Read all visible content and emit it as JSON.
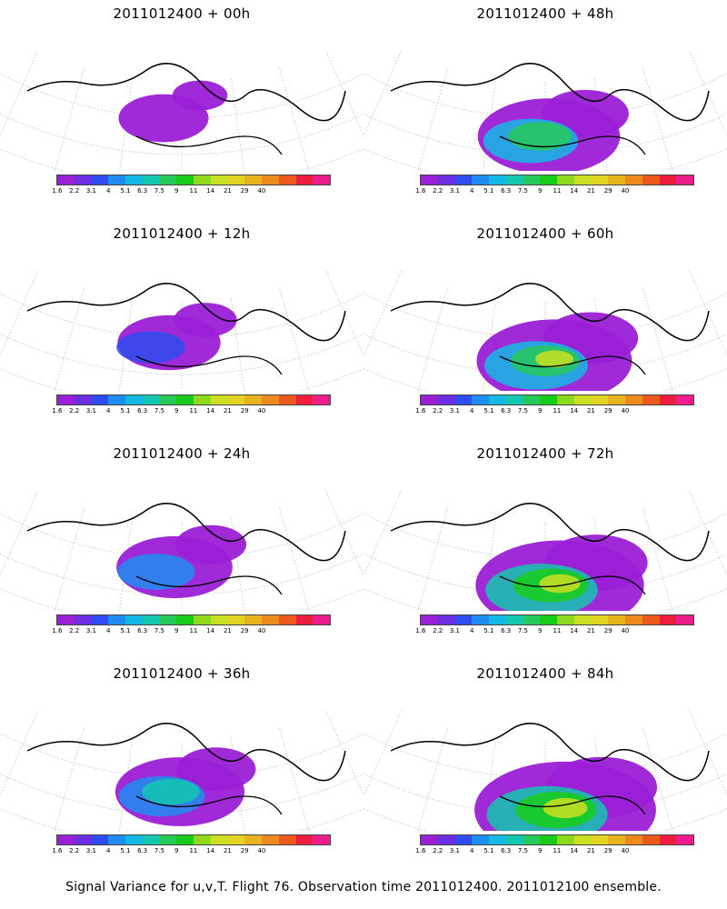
{
  "panels": [
    {
      "title": "2011012400  +  00h",
      "level": 0
    },
    {
      "title": "2011012400  +  48h",
      "level": 4
    },
    {
      "title": "2011012400  +  12h",
      "level": 1
    },
    {
      "title": "2011012400  +  60h",
      "level": 5
    },
    {
      "title": "2011012400  +  24h",
      "level": 2
    },
    {
      "title": "2011012400  +  72h",
      "level": 6
    },
    {
      "title": "2011012400  +  36h",
      "level": 3
    },
    {
      "title": "2011012400  +  84h",
      "level": 7
    }
  ],
  "colorbar": {
    "colors": [
      "#9b1fd6",
      "#6a2fe0",
      "#2e4cf0",
      "#1f8df0",
      "#14b9e3",
      "#13c7b0",
      "#27c95a",
      "#17cc17",
      "#8fd91d",
      "#cbe021",
      "#e3d422",
      "#e9b21f",
      "#ec8a1d",
      "#ec5a1b",
      "#ee1c3e",
      "#ec1c8a"
    ],
    "ticks": [
      "1.6",
      "2.2",
      "3.1",
      "4",
      "5.1",
      "6.3",
      "7.5",
      "9",
      "11",
      "14",
      "21",
      "29",
      "40"
    ]
  },
  "caption": "Signal Variance for u,v,T. Flight 76. Observation time 2011012400. 2011012100 ensemble."
}
